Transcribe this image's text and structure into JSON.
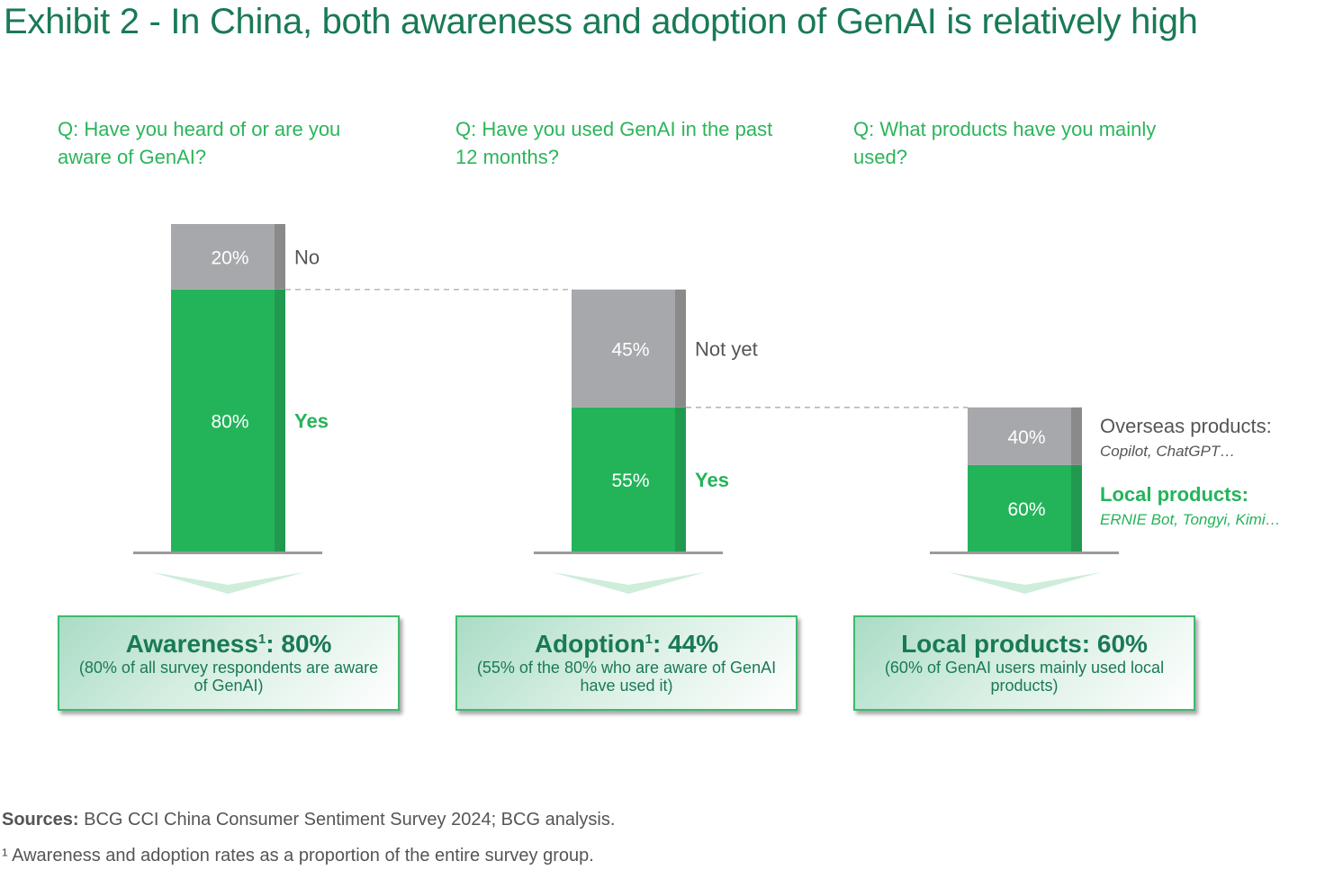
{
  "title": "Exhibit 2 - In China, both awareness and adoption of GenAI is relatively high",
  "chart_data": {
    "type": "bar",
    "subtype": "stacked-waterfall",
    "colors": {
      "yes": "#23b45a",
      "yes_side": "#219a4f",
      "no": "#a7a8ab",
      "no_side": "#8a8a8a",
      "axis": "#9a9a9a",
      "text_green": "#23b45a",
      "text_gray": "#555555"
    },
    "panels": [
      {
        "question": "Q: Have you heard of or are you aware of GenAI?",
        "segments": [
          {
            "label": "Yes",
            "value": 80,
            "value_label": "80%",
            "kind": "yes"
          },
          {
            "label": "No",
            "value": 20,
            "value_label": "20%",
            "kind": "no"
          }
        ],
        "base_share": 100,
        "summary": {
          "title": "Awareness",
          "sup": "1",
          "value": ": 80%",
          "note": "(80% of all survey respondents are aware of GenAI)"
        }
      },
      {
        "question": "Q: Have you used GenAI in the past 12 months?",
        "segments": [
          {
            "label": "Yes",
            "value": 55,
            "value_label": "55%",
            "kind": "yes"
          },
          {
            "label": "Not yet",
            "value": 45,
            "value_label": "45%",
            "kind": "no"
          }
        ],
        "base_share": 80,
        "summary": {
          "title": "Adoption",
          "sup": "1",
          "value": ": 44%",
          "note": "(55% of the 80% who are aware of GenAI have used it)"
        }
      },
      {
        "question": "Q: What products have you mainly used?",
        "segments": [
          {
            "label": "Local products:",
            "sublabel": "ERNIE Bot, Tongyi, Kimi…",
            "value": 60,
            "value_label": "60%",
            "kind": "yes"
          },
          {
            "label": "Overseas products:",
            "sublabel": "Copilot, ChatGPT…",
            "value": 40,
            "value_label": "40%",
            "kind": "no"
          }
        ],
        "base_share": 44,
        "summary": {
          "title": "Local products: 60%",
          "sup": "",
          "value": "",
          "note": "(60% of GenAI users mainly used local products)"
        }
      }
    ]
  },
  "footer": {
    "sources_label": "Sources:",
    "sources_text": " BCG CCI China Consumer Sentiment Survey 2024; BCG analysis.",
    "footnote": "¹ Awareness and adoption rates as a proportion of the entire survey group."
  }
}
